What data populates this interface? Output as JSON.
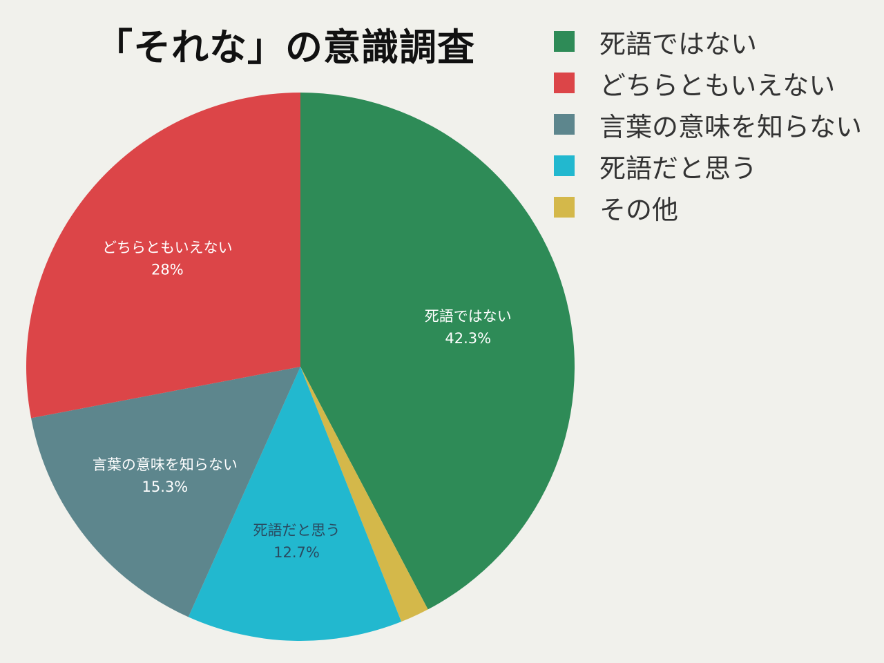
{
  "chart_data": {
    "type": "pie",
    "title": "「それな」の意識調査",
    "legend_position": "top-right",
    "slices": [
      {
        "label": "死語ではない",
        "value": 42.3,
        "display": "42.3%",
        "color": "#2e8b57"
      },
      {
        "label": "その他",
        "value": 1.7,
        "display": "",
        "color": "#d4b84a"
      },
      {
        "label": "死語だと思う",
        "value": 12.7,
        "display": "12.7%",
        "color": "#22b8cf"
      },
      {
        "label": "言葉の意味を知らない",
        "value": 15.3,
        "display": "15.3%",
        "color": "#5d868d"
      },
      {
        "label": "どちらともいえない",
        "value": 28,
        "display": "28%",
        "color": "#dc4548"
      }
    ],
    "legend": [
      {
        "label": "死語ではない",
        "color": "#2e8b57"
      },
      {
        "label": "どちらともいえない",
        "color": "#dc4548"
      },
      {
        "label": "言葉の意味を知らない",
        "color": "#5d868d"
      },
      {
        "label": "死語だと思う",
        "color": "#22b8cf"
      },
      {
        "label": "その他",
        "color": "#d4b84a"
      }
    ]
  }
}
